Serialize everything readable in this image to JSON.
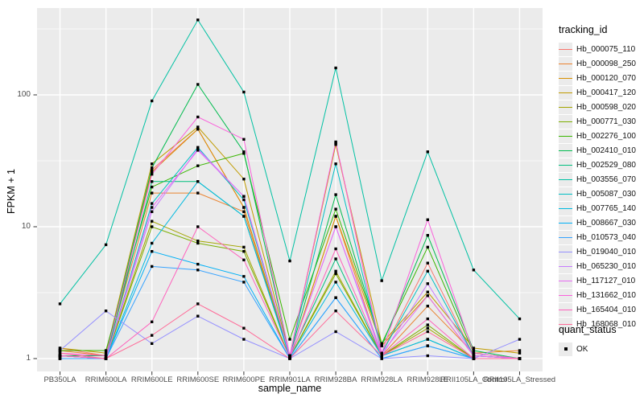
{
  "figure": {
    "y_axis_title": "FPKM + 1",
    "x_axis_title": "sample_name",
    "legend_title": "tracking_id",
    "quant_legend_title": "quant_status",
    "quant_legend_item": "OK"
  },
  "style_colors": {
    "panel_bg": "#ebebeb",
    "grid": "#ffffff",
    "tick_text": "#4d4d4d",
    "tick_mark": "#333333",
    "point": "#000000"
  },
  "chart_data": {
    "type": "line",
    "title": "",
    "xlabel": "sample_name",
    "ylabel": "FPKM + 1",
    "y_scale": "log10",
    "ylim": [
      0.8,
      455
    ],
    "y_ticks": [
      1,
      10,
      100
    ],
    "y_minor_ticks": [
      3.162,
      31.62,
      316.2
    ],
    "grid": true,
    "legend_position": "right",
    "point_shape": "filled-square",
    "quant_status": "OK",
    "categories": [
      "PB350LA",
      "RRIM600LA",
      "RRIM600LE",
      "RRIM600SE",
      "RRIM600PE",
      "RRIM901LA",
      "RRIM928BA",
      "RRIM928LA",
      "RRIM928LE",
      "RRII105LA_Control",
      "RRII105LA_Stressed"
    ],
    "series": [
      {
        "name": "Hb_000075_110",
        "color": "#F8766D",
        "values": [
          1.2,
          1.05,
          27,
          55,
          14,
          1.05,
          43,
          1.1,
          5.3,
          1.05,
          1.0
        ]
      },
      {
        "name": "Hb_000098_250",
        "color": "#EA8331",
        "values": [
          1.15,
          1.05,
          18,
          18,
          13,
          1.02,
          12,
          1.05,
          2.5,
          1.1,
          1.15
        ]
      },
      {
        "name": "Hb_000120_070",
        "color": "#D89000",
        "values": [
          1.05,
          1.0,
          26,
          55,
          14,
          1.02,
          12,
          1.25,
          3.0,
          1.05,
          1.0
        ]
      },
      {
        "name": "Hb_000417_120",
        "color": "#C09B00",
        "values": [
          1.2,
          1.1,
          30,
          57,
          23,
          1.05,
          42,
          1.3,
          3.2,
          1.2,
          1.1
        ]
      },
      {
        "name": "Hb_000598_020",
        "color": "#A3A500",
        "values": [
          1.05,
          1.0,
          11,
          7.8,
          7.0,
          1.02,
          4.6,
          1.05,
          1.7,
          1.0,
          1.0
        ]
      },
      {
        "name": "Hb_000771_030",
        "color": "#7CAE00",
        "values": [
          1.05,
          1.0,
          10,
          7.5,
          6.5,
          1.02,
          4.4,
          1.05,
          1.8,
          1.0,
          1.0
        ]
      },
      {
        "name": "Hb_002276_100",
        "color": "#39B600",
        "values": [
          1.15,
          1.15,
          20,
          29,
          36,
          1.4,
          13.6,
          1.3,
          7.0,
          1.1,
          1.0
        ]
      },
      {
        "name": "Hb_002410_010",
        "color": "#00BB4E",
        "values": [
          1.05,
          1.05,
          28,
          120,
          37,
          1.05,
          17.5,
          1.25,
          8.6,
          1.15,
          1.0
        ]
      },
      {
        "name": "Hb_002529_080",
        "color": "#00BF7D",
        "values": [
          1.0,
          1.0,
          22,
          22,
          12,
          1.05,
          5.7,
          1.05,
          1.4,
          1.0,
          1.0
        ]
      },
      {
        "name": "Hb_003556_070",
        "color": "#00C1A3",
        "values": [
          2.6,
          7.3,
          90,
          370,
          105,
          5.5,
          160,
          3.9,
          37,
          4.7,
          2.0
        ]
      },
      {
        "name": "Hb_005087_030",
        "color": "#00BFC4",
        "values": [
          1.05,
          1.0,
          15,
          40,
          16,
          1.05,
          30,
          1.1,
          4.6,
          1.05,
          1.0
        ]
      },
      {
        "name": "Hb_007765_140",
        "color": "#00BAE0",
        "values": [
          1.0,
          1.0,
          7.5,
          22,
          12,
          1.02,
          3.8,
          1.05,
          1.4,
          1.0,
          1.0
        ]
      },
      {
        "name": "Hb_008667_030",
        "color": "#00B0F6",
        "values": [
          1.0,
          1.0,
          6.5,
          5.2,
          4.2,
          1.0,
          2.9,
          1.0,
          1.25,
          1.0,
          1.0
        ]
      },
      {
        "name": "Hb_010573_040",
        "color": "#35A2FF",
        "values": [
          1.0,
          1.0,
          5.0,
          4.7,
          3.8,
          1.0,
          2.9,
          1.0,
          1.25,
          1.0,
          1.0
        ]
      },
      {
        "name": "Hb_019040_010",
        "color": "#9590FF",
        "values": [
          1.15,
          2.3,
          1.3,
          2.1,
          1.4,
          1.0,
          1.6,
          1.0,
          1.05,
          1.0,
          1.4
        ]
      },
      {
        "name": "Hb_065230_010",
        "color": "#C77CFF",
        "values": [
          1.05,
          1.0,
          13,
          39,
          17,
          1.05,
          10,
          1.05,
          3.7,
          1.05,
          1.0
        ]
      },
      {
        "name": "Hb_117127_010",
        "color": "#E76BF3",
        "values": [
          1.05,
          1.0,
          14,
          38,
          17,
          1.05,
          10,
          1.1,
          3.0,
          1.05,
          1.0
        ]
      },
      {
        "name": "Hb_131662_010",
        "color": "#FA62DB",
        "values": [
          1.1,
          1.05,
          25,
          68,
          46,
          1.05,
          44,
          1.1,
          11.3,
          1.1,
          1.0
        ]
      },
      {
        "name": "Hb_165404_010",
        "color": "#FF62BC",
        "values": [
          1.05,
          1.0,
          1.9,
          10,
          5.6,
          1.02,
          6.8,
          1.05,
          2.0,
          1.0,
          1.0
        ]
      },
      {
        "name": "Hb_168068_010",
        "color": "#FF6A98",
        "values": [
          1.1,
          1.0,
          1.5,
          2.6,
          1.7,
          1.0,
          2.3,
          1.05,
          1.6,
          1.0,
          1.0
        ]
      }
    ]
  }
}
